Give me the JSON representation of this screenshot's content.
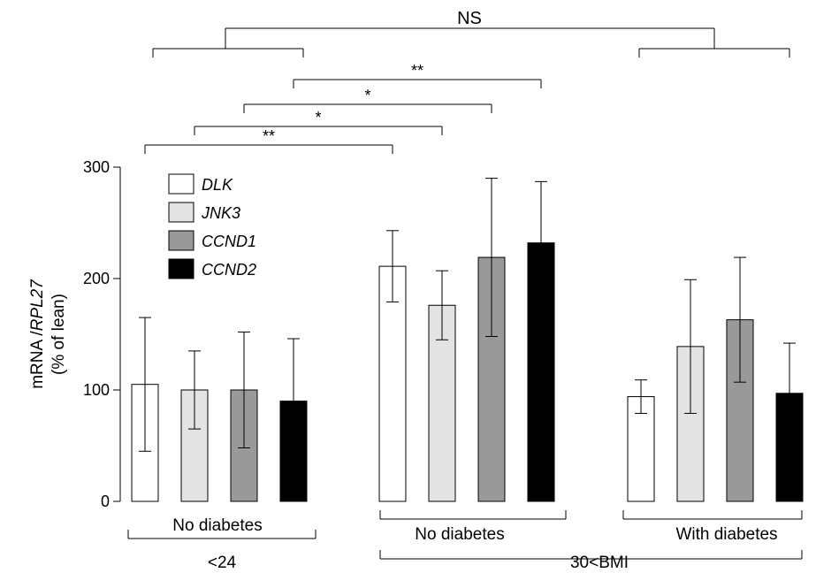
{
  "chart_data": {
    "type": "bar",
    "ylabel_line1_prefix": "mRNA /",
    "ylabel_line1_gene": "RPL27",
    "ylabel_line2": "(% of lean)",
    "ylim": [
      0,
      300
    ],
    "yticks": [
      0,
      100,
      200,
      300
    ],
    "grid": false,
    "legend_position": "top-left",
    "series": [
      {
        "name": "DLK",
        "color": "#ffffff"
      },
      {
        "name": "JNK3",
        "color": "#e3e3e3"
      },
      {
        "name": "CCND1",
        "color": "#999999"
      },
      {
        "name": "CCND2",
        "color": "#000000"
      }
    ],
    "groups": [
      {
        "label": "No diabetes",
        "values": [
          105,
          100,
          100,
          90
        ],
        "err": [
          60,
          35,
          52,
          56
        ]
      },
      {
        "label": "No diabetes",
        "values": [
          211,
          176,
          219,
          232
        ],
        "err": [
          32,
          31,
          71,
          55
        ]
      },
      {
        "label": "With diabetes",
        "values": [
          94,
          139,
          163,
          97
        ],
        "err": [
          15,
          60,
          56,
          45
        ]
      }
    ],
    "bmi_labels": [
      "<24",
      "30<BMI"
    ],
    "significance": [
      {
        "label": "NS"
      },
      {
        "label": "**"
      },
      {
        "label": "*"
      },
      {
        "label": "*"
      },
      {
        "label": "**"
      }
    ]
  }
}
